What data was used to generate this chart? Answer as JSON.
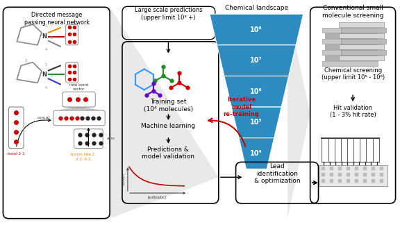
{
  "bg_color": "#ffffff",
  "left_box_title": "Directed message\npassing neural network",
  "large_pred_label": "Large scale predictions\n(upper limit 10⁸ +)",
  "middle_box_steps": [
    "Training set\n(10⁴ molecules)",
    "Machine learning",
    "Predictions &\nmodel validation"
  ],
  "iterative_label": "Iterative\nmodel\nre-training",
  "chemical_landscape_title": "Chemical landscape",
  "funnel_labels": [
    "10⁸",
    "10⁷",
    "10⁶",
    "10⁵",
    "10⁴"
  ],
  "funnel_color": "#2E8BC0",
  "right_box_title": "Conventional small\nmolecule screening",
  "right_steps": [
    "Chemical screening\n(upper limit 10⁵ - 10⁶)",
    "Hit validation\n(1 - 3% hit rate)"
  ],
  "lead_label": "Lead\nidentification\n& optimization",
  "red": "#CC0000",
  "black": "#111111",
  "gray": "#888888",
  "orange": "#E88C00",
  "gray_fill": "#d4d4d4"
}
